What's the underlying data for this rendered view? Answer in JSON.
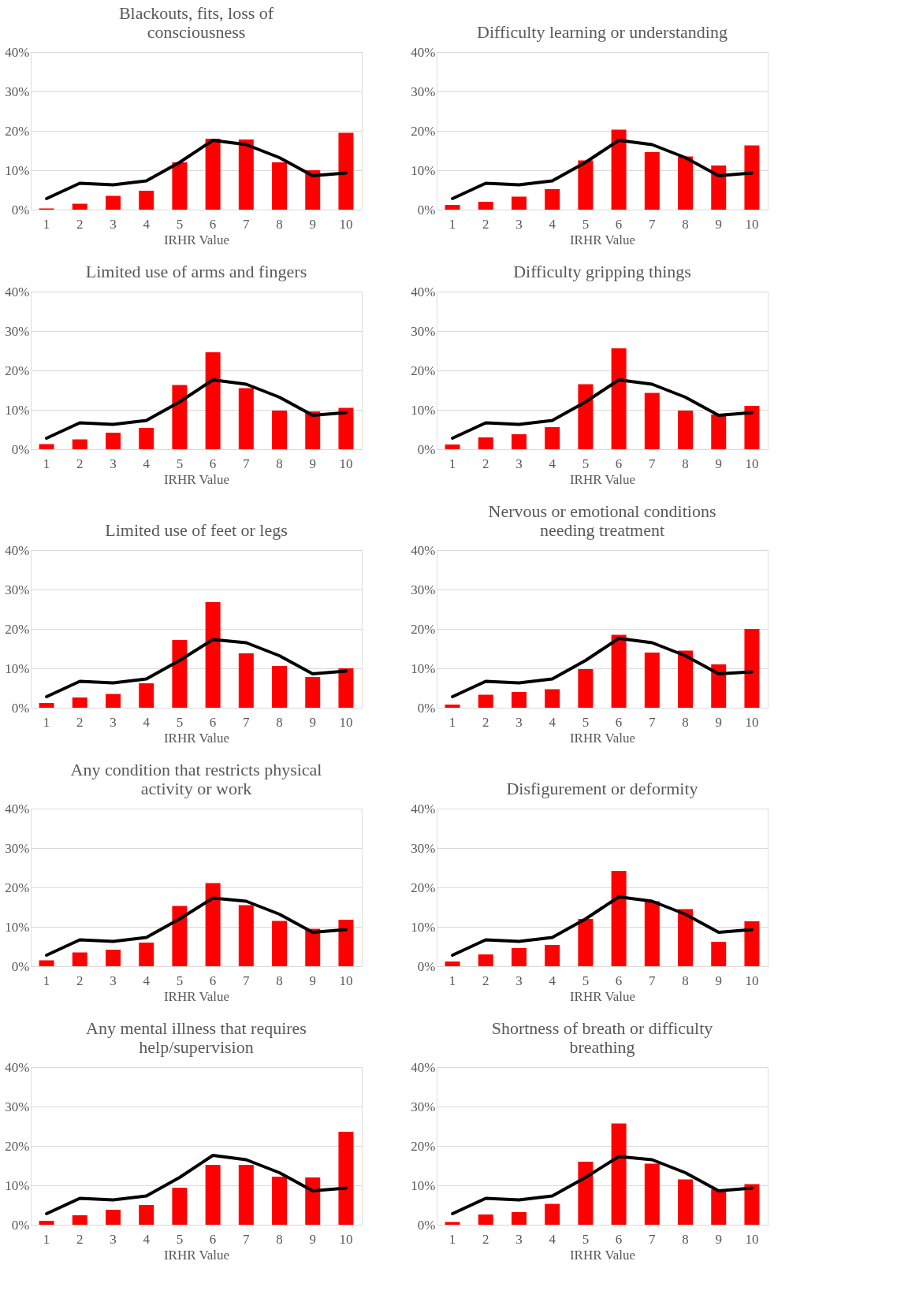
{
  "chart_data": [
    {
      "type": "bar",
      "title": "Blackouts, fits, loss of consciousness",
      "xlabel": "IRHR Value",
      "categories": [
        "1",
        "2",
        "3",
        "4",
        "5",
        "6",
        "7",
        "8",
        "9",
        "10"
      ],
      "ylim": [
        0,
        40
      ],
      "yticks": [
        {
          "value": 0,
          "label": "0%"
        },
        {
          "value": 10,
          "label": "10%"
        },
        {
          "value": 20,
          "label": "20%"
        },
        {
          "value": 30,
          "label": "30%"
        },
        {
          "value": 40,
          "label": "40%"
        }
      ],
      "grid": "y",
      "series": [
        {
          "color": "#ff0000",
          "values": [
            0.3,
            1.5,
            3.5,
            4.8,
            12,
            18,
            17.8,
            12,
            10,
            19.5
          ]
        },
        {
          "type": "line",
          "color": "#000000",
          "values": [
            2.8,
            6.7,
            6.3,
            7.3,
            12,
            17.6,
            16.5,
            13.2,
            8.6,
            9.3
          ]
        }
      ]
    },
    {
      "type": "bar",
      "title": "Difficulty learning or understanding",
      "xlabel": "IRHR Value",
      "categories": [
        "1",
        "2",
        "3",
        "4",
        "5",
        "6",
        "7",
        "8",
        "9",
        "10"
      ],
      "ylim": [
        0,
        40
      ],
      "yticks": [
        {
          "value": 0,
          "label": "0%"
        },
        {
          "value": 10,
          "label": "10%"
        },
        {
          "value": 20,
          "label": "20%"
        },
        {
          "value": 30,
          "label": "30%"
        },
        {
          "value": 40,
          "label": "40%"
        }
      ],
      "grid": "y",
      "series": [
        {
          "color": "#ff0000",
          "values": [
            1.2,
            2,
            3.3,
            5.2,
            12.5,
            20.3,
            14.6,
            13.5,
            11.2,
            16.3
          ]
        },
        {
          "type": "line",
          "color": "#000000",
          "values": [
            2.8,
            6.7,
            6.3,
            7.3,
            12,
            17.6,
            16.5,
            13.2,
            8.6,
            9.3
          ]
        }
      ]
    },
    {
      "type": "bar",
      "title": "Limited use of arms and fingers",
      "xlabel": "IRHR Value",
      "categories": [
        "1",
        "2",
        "3",
        "4",
        "5",
        "6",
        "7",
        "8",
        "9",
        "10"
      ],
      "ylim": [
        0,
        40
      ],
      "yticks": [
        {
          "value": 0,
          "label": "0%"
        },
        {
          "value": 10,
          "label": "10%"
        },
        {
          "value": 20,
          "label": "20%"
        },
        {
          "value": 30,
          "label": "30%"
        },
        {
          "value": 40,
          "label": "40%"
        }
      ],
      "grid": "y",
      "series": [
        {
          "color": "#ff0000",
          "values": [
            1.3,
            2.5,
            4.2,
            5.4,
            16.3,
            24.6,
            15.5,
            9.8,
            9.6,
            10.5
          ]
        },
        {
          "type": "line",
          "color": "#000000",
          "values": [
            2.8,
            6.7,
            6.3,
            7.3,
            12,
            17.6,
            16.5,
            13.2,
            8.6,
            9.3
          ]
        }
      ]
    },
    {
      "type": "bar",
      "title": "Difficulty gripping things",
      "xlabel": "IRHR Value",
      "categories": [
        "1",
        "2",
        "3",
        "4",
        "5",
        "6",
        "7",
        "8",
        "9",
        "10"
      ],
      "ylim": [
        0,
        40
      ],
      "yticks": [
        {
          "value": 0,
          "label": "0%"
        },
        {
          "value": 10,
          "label": "10%"
        },
        {
          "value": 20,
          "label": "20%"
        },
        {
          "value": 30,
          "label": "30%"
        },
        {
          "value": 40,
          "label": "40%"
        }
      ],
      "grid": "y",
      "series": [
        {
          "color": "#ff0000",
          "values": [
            1.2,
            3,
            3.8,
            5.6,
            16.5,
            25.6,
            14.3,
            9.8,
            8.8,
            11
          ]
        },
        {
          "type": "line",
          "color": "#000000",
          "values": [
            2.8,
            6.7,
            6.3,
            7.3,
            12,
            17.6,
            16.5,
            13.2,
            8.6,
            9.3
          ]
        }
      ]
    },
    {
      "type": "bar",
      "title": "Limited use of feet or legs",
      "xlabel": "IRHR Value",
      "categories": [
        "1",
        "2",
        "3",
        "4",
        "5",
        "6",
        "7",
        "8",
        "9",
        "10"
      ],
      "ylim": [
        0,
        40
      ],
      "yticks": [
        {
          "value": 0,
          "label": "0%"
        },
        {
          "value": 10,
          "label": "10%"
        },
        {
          "value": 20,
          "label": "20%"
        },
        {
          "value": 30,
          "label": "30%"
        },
        {
          "value": 40,
          "label": "40%"
        }
      ],
      "grid": "y",
      "series": [
        {
          "color": "#ff0000",
          "values": [
            1.2,
            2.6,
            3.5,
            6.2,
            17.2,
            26.8,
            13.8,
            10.6,
            7.8,
            10
          ]
        },
        {
          "type": "line",
          "color": "#000000",
          "values": [
            2.8,
            6.7,
            6.3,
            7.3,
            12,
            17.3,
            16.5,
            13.2,
            8.6,
            9.3
          ]
        }
      ]
    },
    {
      "type": "bar",
      "title": "Nervous or emotional conditions needing treatment",
      "xlabel": "IRHR Value",
      "categories": [
        "1",
        "2",
        "3",
        "4",
        "5",
        "6",
        "7",
        "8",
        "9",
        "10"
      ],
      "ylim": [
        0,
        40
      ],
      "yticks": [
        {
          "value": 0,
          "label": "0%"
        },
        {
          "value": 10,
          "label": "10%"
        },
        {
          "value": 20,
          "label": "20%"
        },
        {
          "value": 30,
          "label": "30%"
        },
        {
          "value": 40,
          "label": "40%"
        }
      ],
      "grid": "y",
      "series": [
        {
          "color": "#ff0000",
          "values": [
            0.8,
            3.3,
            4,
            4.7,
            9.8,
            18.5,
            14,
            14.5,
            11,
            20
          ]
        },
        {
          "type": "line",
          "color": "#000000",
          "values": [
            2.8,
            6.7,
            6.3,
            7.3,
            12,
            17.6,
            16.5,
            13.2,
            8.6,
            9.1
          ]
        }
      ]
    },
    {
      "type": "bar",
      "title": "Any condition that restricts physical activity or work",
      "xlabel": "IRHR Value",
      "categories": [
        "1",
        "2",
        "3",
        "4",
        "5",
        "6",
        "7",
        "8",
        "9",
        "10"
      ],
      "ylim": [
        0,
        40
      ],
      "yticks": [
        {
          "value": 0,
          "label": "0%"
        },
        {
          "value": 10,
          "label": "10%"
        },
        {
          "value": 20,
          "label": "20%"
        },
        {
          "value": 30,
          "label": "30%"
        },
        {
          "value": 40,
          "label": "40%"
        }
      ],
      "grid": "y",
      "series": [
        {
          "color": "#ff0000",
          "values": [
            1.5,
            3.5,
            4.2,
            6,
            15.3,
            21.1,
            15.5,
            11.5,
            9.5,
            11.8
          ]
        },
        {
          "type": "line",
          "color": "#000000",
          "values": [
            2.8,
            6.7,
            6.3,
            7.3,
            12,
            17.3,
            16.5,
            13.2,
            8.6,
            9.3
          ]
        }
      ]
    },
    {
      "type": "bar",
      "title": "Disfigurement or deformity",
      "xlabel": "IRHR Value",
      "categories": [
        "1",
        "2",
        "3",
        "4",
        "5",
        "6",
        "7",
        "8",
        "9",
        "10"
      ],
      "ylim": [
        0,
        40
      ],
      "yticks": [
        {
          "value": 0,
          "label": "0%"
        },
        {
          "value": 10,
          "label": "10%"
        },
        {
          "value": 20,
          "label": "20%"
        },
        {
          "value": 30,
          "label": "30%"
        },
        {
          "value": 40,
          "label": "40%"
        }
      ],
      "grid": "y",
      "series": [
        {
          "color": "#ff0000",
          "values": [
            1.2,
            3,
            4.6,
            5.4,
            12,
            24.2,
            16.5,
            14.5,
            6.2,
            11.4
          ]
        },
        {
          "type": "line",
          "color": "#000000",
          "values": [
            2.8,
            6.7,
            6.3,
            7.3,
            12,
            17.6,
            16.5,
            13.2,
            8.6,
            9.3
          ]
        }
      ]
    },
    {
      "type": "bar",
      "title": "Any mental illness that requires help/supervision",
      "xlabel": "IRHR Value",
      "categories": [
        "1",
        "2",
        "3",
        "4",
        "5",
        "6",
        "7",
        "8",
        "9",
        "10"
      ],
      "ylim": [
        0,
        40
      ],
      "yticks": [
        {
          "value": 0,
          "label": "0%"
        },
        {
          "value": 10,
          "label": "10%"
        },
        {
          "value": 20,
          "label": "20%"
        },
        {
          "value": 30,
          "label": "30%"
        },
        {
          "value": 40,
          "label": "40%"
        }
      ],
      "grid": "y",
      "series": [
        {
          "color": "#ff0000",
          "values": [
            1,
            2.4,
            3.8,
            5,
            9.4,
            15.2,
            15.2,
            12.2,
            12,
            23.6
          ]
        },
        {
          "type": "line",
          "color": "#000000",
          "values": [
            2.8,
            6.7,
            6.3,
            7.3,
            12,
            17.6,
            16.5,
            13.2,
            8.6,
            9.3
          ]
        }
      ]
    },
    {
      "type": "bar",
      "title": "Shortness of breath or difficulty breathing",
      "xlabel": "IRHR Value",
      "categories": [
        "1",
        "2",
        "3",
        "4",
        "5",
        "6",
        "7",
        "8",
        "9",
        "10"
      ],
      "ylim": [
        0,
        40
      ],
      "yticks": [
        {
          "value": 0,
          "label": "0%"
        },
        {
          "value": 10,
          "label": "10%"
        },
        {
          "value": 20,
          "label": "20%"
        },
        {
          "value": 30,
          "label": "30%"
        },
        {
          "value": 40,
          "label": "40%"
        }
      ],
      "grid": "y",
      "series": [
        {
          "color": "#ff0000",
          "values": [
            0.7,
            2.6,
            3.2,
            5.3,
            16,
            25.7,
            15.5,
            11.5,
            9,
            10.3
          ]
        },
        {
          "type": "line",
          "color": "#000000",
          "values": [
            2.8,
            6.7,
            6.3,
            7.3,
            12,
            17.3,
            16.5,
            13.2,
            8.6,
            9.3
          ]
        }
      ]
    }
  ]
}
